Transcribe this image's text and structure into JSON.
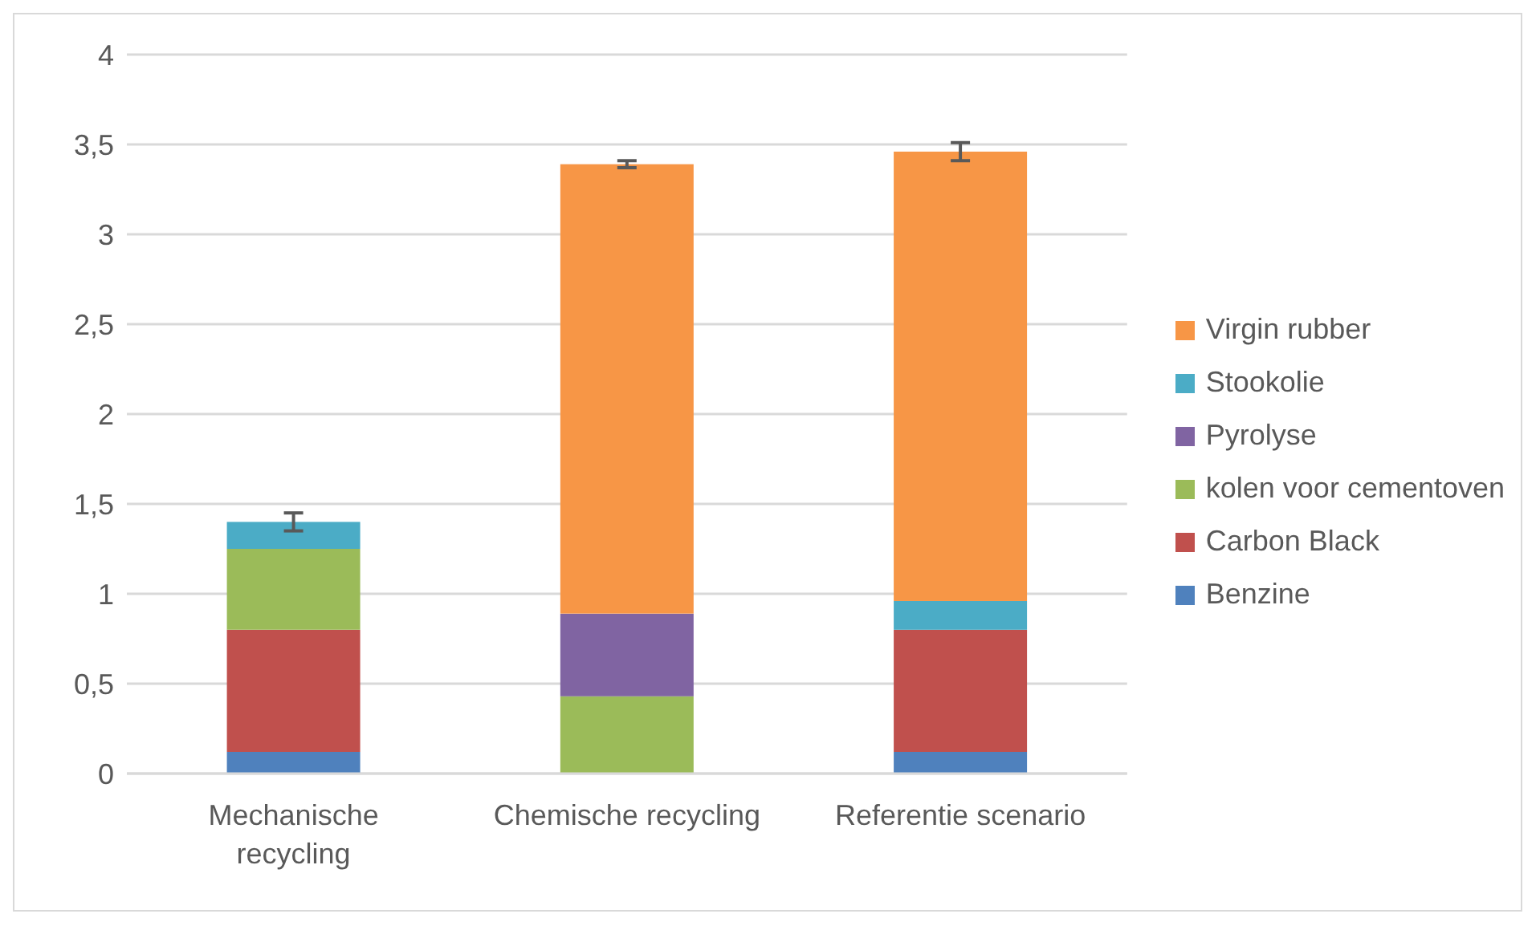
{
  "chart_data": {
    "type": "bar",
    "stacked": true,
    "categories": [
      "Mechanische recycling",
      "Chemische recycling",
      "Referentie scenario"
    ],
    "series": [
      {
        "name": "Benzine",
        "color": "#4f81bd",
        "values": [
          0.12,
          null,
          0.12
        ]
      },
      {
        "name": "Carbon Black",
        "color": "#c0504d",
        "values": [
          0.68,
          null,
          0.68
        ]
      },
      {
        "name": "kolen voor cementoven",
        "color": "#9bbb59",
        "values": [
          0.45,
          0.43,
          null
        ]
      },
      {
        "name": "Pyrolyse",
        "color": "#8064a2",
        "values": [
          null,
          0.46,
          null
        ]
      },
      {
        "name": "Stookolie",
        "color": "#4bacc6",
        "values": [
          0.15,
          null,
          0.16
        ],
        "errors": [
          0.05,
          null,
          null
        ]
      },
      {
        "name": "Virgin rubber",
        "color": "#f79646",
        "values": [
          null,
          2.5,
          2.5
        ],
        "errors": [
          null,
          0.02,
          0.05
        ]
      }
    ],
    "ylim": [
      0,
      4
    ],
    "yticks": [
      0,
      {
        "value": 0.5,
        "label": "0,5"
      },
      1,
      {
        "value": 1.5,
        "label": "1,5"
      },
      2,
      {
        "value": 2.5,
        "label": "2,5"
      },
      3,
      {
        "value": 3.5,
        "label": "3,5"
      },
      4
    ],
    "grid": "y",
    "legend": "right"
  }
}
